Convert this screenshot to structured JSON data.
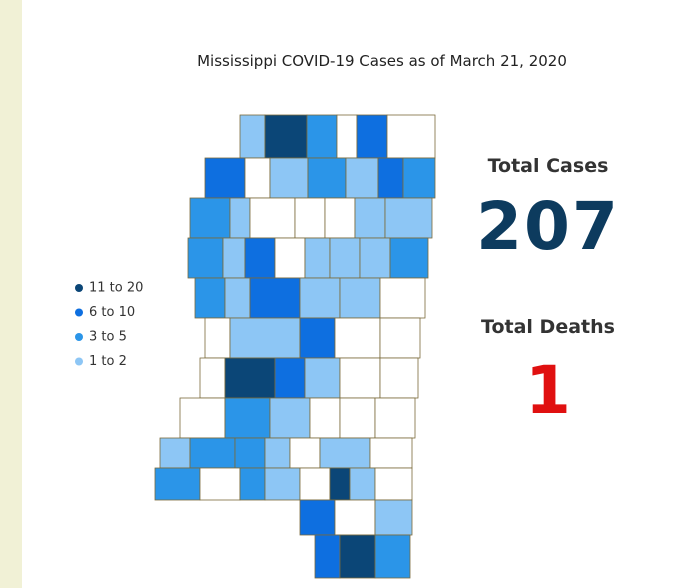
{
  "title": "Mississippi COVID-19 Cases as of March 21, 2020",
  "legend": {
    "items": [
      {
        "label": "11 to 20",
        "color": "#0b4677"
      },
      {
        "label": "6 to 10",
        "color": "#0e6fe0"
      },
      {
        "label": "3 to 5",
        "color": "#2b95e8"
      },
      {
        "label": "1 to 2",
        "color": "#8dc6f5"
      }
    ]
  },
  "stats": {
    "cases_label": "Total Cases",
    "cases": 207,
    "deaths_label": "Total Deaths",
    "deaths": 1
  }
}
